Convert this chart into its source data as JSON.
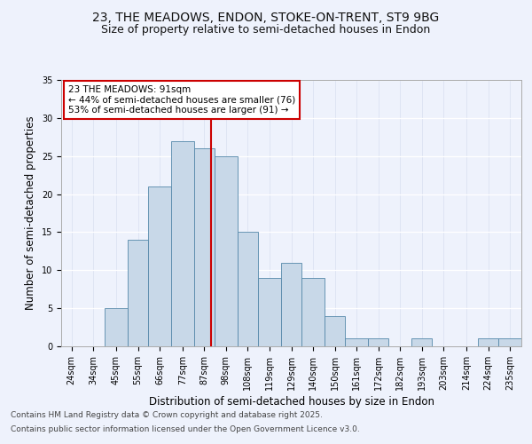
{
  "title_line1": "23, THE MEADOWS, ENDON, STOKE-ON-TRENT, ST9 9BG",
  "title_line2": "Size of property relative to semi-detached houses in Endon",
  "xlabel": "Distribution of semi-detached houses by size in Endon",
  "ylabel": "Number of semi-detached properties",
  "bin_labels": [
    "24sqm",
    "34sqm",
    "45sqm",
    "55sqm",
    "66sqm",
    "77sqm",
    "87sqm",
    "98sqm",
    "108sqm",
    "119sqm",
    "129sqm",
    "140sqm",
    "150sqm",
    "161sqm",
    "172sqm",
    "182sqm",
    "193sqm",
    "203sqm",
    "214sqm",
    "224sqm",
    "235sqm"
  ],
  "bin_edges": [
    18.5,
    28.5,
    39.5,
    50.5,
    60.5,
    71.5,
    82.5,
    92.5,
    103.5,
    113.5,
    124.5,
    134.5,
    145.5,
    155.5,
    166.5,
    176.5,
    187.5,
    197.5,
    208.5,
    219.5,
    229.5,
    240.5
  ],
  "counts": [
    0,
    0,
    5,
    14,
    21,
    27,
    26,
    25,
    15,
    9,
    11,
    9,
    4,
    1,
    1,
    0,
    1,
    0,
    0,
    1,
    1
  ],
  "bar_color": "#c8d8e8",
  "bar_edgecolor": "#5588aa",
  "red_line_x": 91,
  "annotation_title": "23 THE MEADOWS: 91sqm",
  "annotation_line2": "← 44% of semi-detached houses are smaller (76)",
  "annotation_line3": "53% of semi-detached houses are larger (91) →",
  "annotation_box_color": "#ffffff",
  "annotation_box_edgecolor": "#cc0000",
  "red_line_color": "#cc0000",
  "ylim": [
    0,
    35
  ],
  "yticks": [
    0,
    5,
    10,
    15,
    20,
    25,
    30,
    35
  ],
  "footer_line1": "Contains HM Land Registry data © Crown copyright and database right 2025.",
  "footer_line2": "Contains public sector information licensed under the Open Government Licence v3.0.",
  "background_color": "#eef2fc",
  "plot_background": "#eef2fc",
  "title_fontsize": 10,
  "subtitle_fontsize": 9,
  "axis_fontsize": 8.5,
  "tick_fontsize": 7,
  "annotation_fontsize": 7.5,
  "footer_fontsize": 6.5
}
